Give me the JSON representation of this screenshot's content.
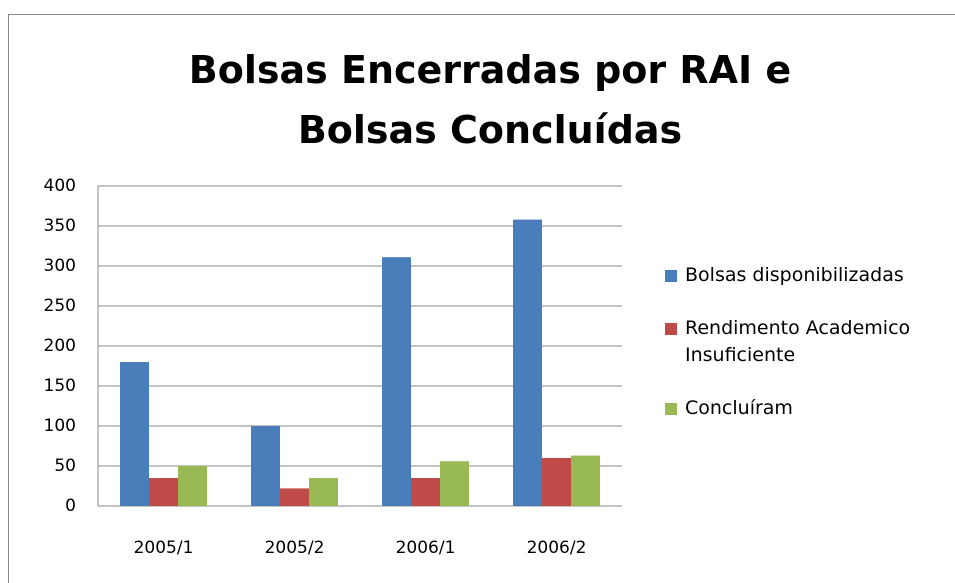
{
  "chart_data": {
    "type": "bar",
    "title": "Bolsas Encerradas por RAI e Bolsas Concluídas",
    "categories": [
      "2005/1",
      "2005/2",
      "2006/1",
      "2006/2"
    ],
    "series": [
      {
        "name": "Bolsas disponibilizadas",
        "color": "#4a7ebb",
        "values": [
          180,
          100,
          311,
          358
        ]
      },
      {
        "name": "Rendimento Academico Insuficiente",
        "color": "#be4b48",
        "values": [
          35,
          22,
          35,
          60
        ]
      },
      {
        "name": "Concluíram",
        "color": "#98b954",
        "values": [
          50,
          35,
          56,
          63
        ]
      }
    ],
    "ylim": [
      0,
      400
    ],
    "yticks": [
      0,
      50,
      100,
      150,
      200,
      250,
      300,
      350,
      400
    ],
    "grid": true,
    "legend": "right"
  }
}
